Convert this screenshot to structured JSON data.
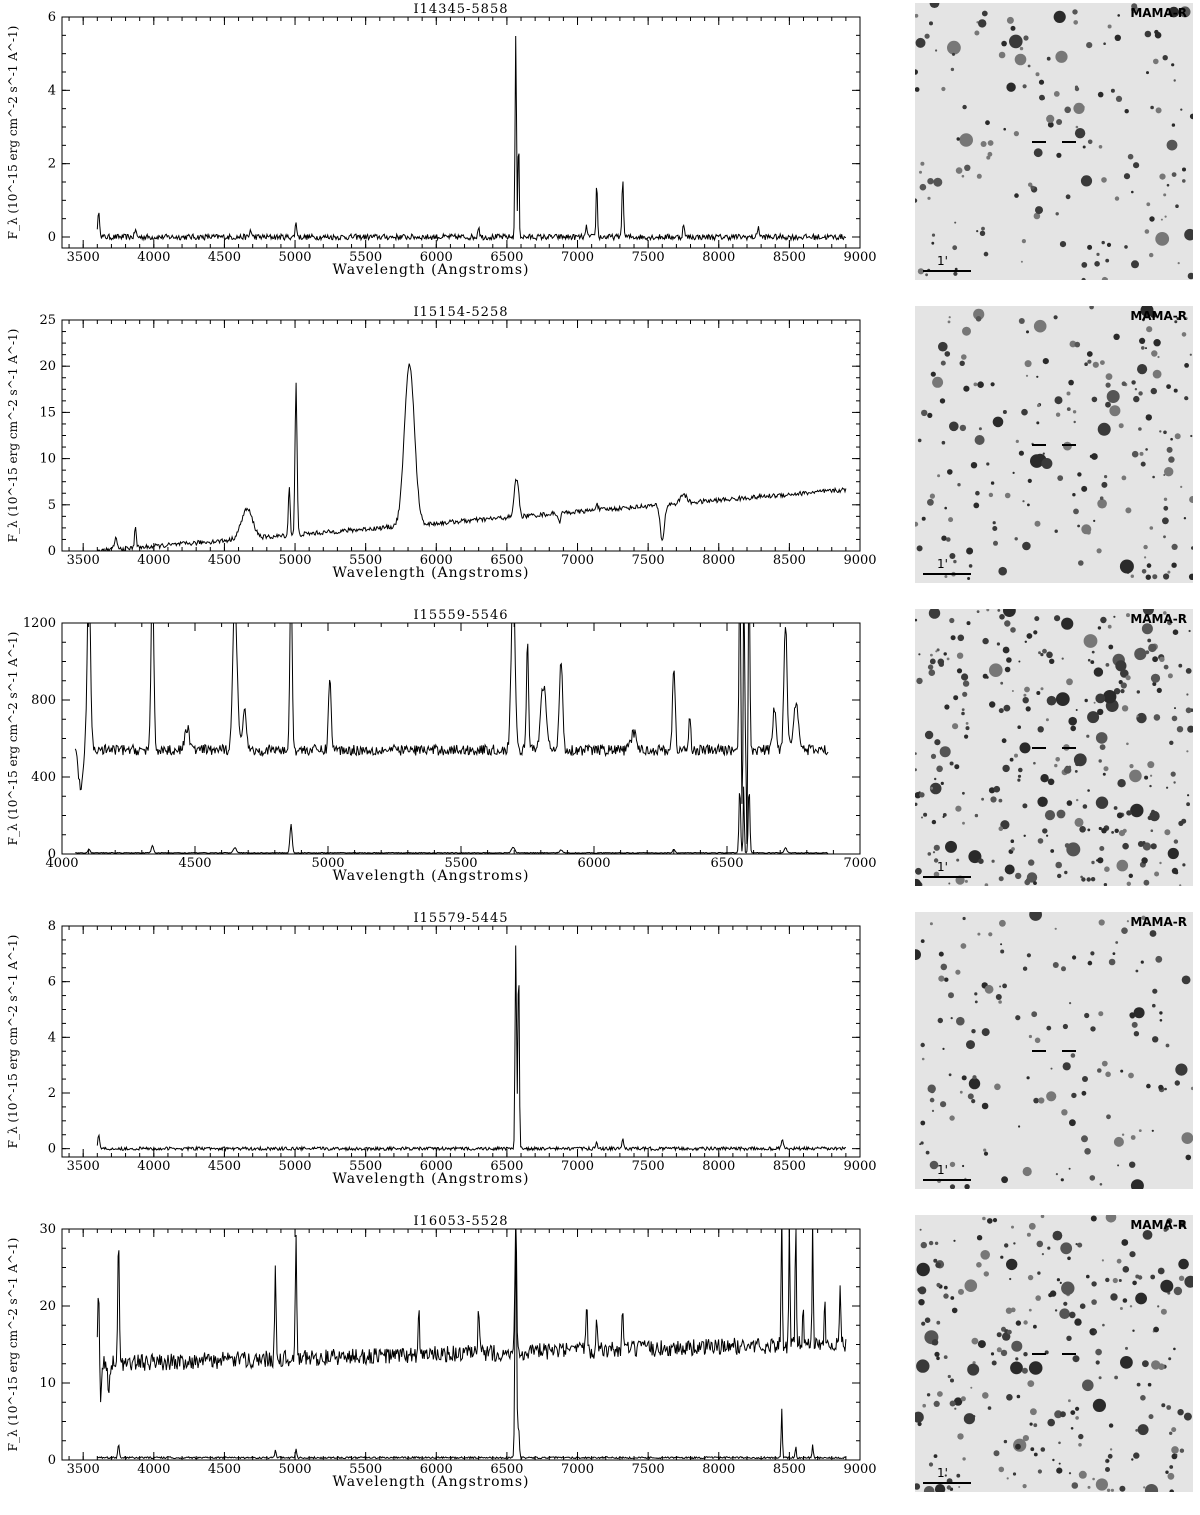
{
  "image_tag": "MAMA-R",
  "scale_label": "1'",
  "xlabel": "Wavelength (Angstroms)",
  "ylabel": "F_λ (10^-15 erg cm^-2 s^-1 A^-1)",
  "chart_data": [
    {
      "type": "line",
      "title": "I14345-5858",
      "xlabel": "Wavelength (Angstroms)",
      "ylabel": "F_λ (10^-15 erg cm^-2 s^-1 A^-1)",
      "xlim": [
        3350,
        9000
      ],
      "ylim": [
        -0.3,
        6
      ],
      "xticks": [
        3500,
        4000,
        4500,
        5000,
        5500,
        6000,
        6500,
        7000,
        7500,
        8000,
        8500,
        9000
      ],
      "yticks": [
        0,
        2,
        4,
        6
      ],
      "series": [
        {
          "range": [
            3600,
            8900
          ],
          "baseline": 0.0,
          "slope": 0,
          "noise": 0.08,
          "peaks": [
            [
              3610,
              0.6,
              8
            ],
            [
              3870,
              0.2,
              6
            ],
            [
              4686,
              0.2,
              6
            ],
            [
              5007,
              0.4,
              6
            ],
            [
              6300,
              0.3,
              6
            ],
            [
              6563,
              5.5,
              5
            ],
            [
              6583,
              2.9,
              4
            ],
            [
              7065,
              0.3,
              5
            ],
            [
              7136,
              1.5,
              5
            ],
            [
              7320,
              1.5,
              6
            ],
            [
              7751,
              0.4,
              5
            ],
            [
              8280,
              0.3,
              6
            ]
          ],
          "dips": []
        }
      ]
    },
    {
      "type": "line",
      "title": "I15154-5258",
      "xlabel": "Wavelength (Angstroms)",
      "ylabel": "F_λ (10^-15 erg cm^-2 s^-1 A^-1)",
      "xlim": [
        3350,
        9000
      ],
      "ylim": [
        0,
        25
      ],
      "xticks": [
        3500,
        4000,
        4500,
        5000,
        5500,
        6000,
        6500,
        7000,
        7500,
        8000,
        8500,
        9000
      ],
      "yticks": [
        0,
        5,
        10,
        15,
        20,
        25
      ],
      "series": [
        {
          "range": [
            3600,
            8900
          ],
          "baseline": 0.0,
          "slope": 0.00125,
          "noise": 0.25,
          "peaks": [
            [
              3730,
              1.2,
              10
            ],
            [
              3870,
              2.5,
              6
            ],
            [
              4660,
              3.2,
              40
            ],
            [
              4959,
              5.5,
              6
            ],
            [
              5007,
              16.5,
              7
            ],
            [
              5810,
              17.5,
              35
            ],
            [
              6563,
              4.0,
              12
            ],
            [
              6583,
              2.0,
              8
            ],
            [
              7136,
              0.8,
              8
            ],
            [
              7750,
              1.0,
              20
            ]
          ],
          "dips": [
            [
              7600,
              3.8,
              15
            ],
            [
              6870,
              1.0,
              8
            ]
          ]
        }
      ]
    },
    {
      "type": "line",
      "title": "I15559-5546",
      "xlabel": "Wavelength (Angstroms)",
      "ylabel": "F_λ (10^-15 erg cm^-2 s^-1 A^-1)",
      "xlim": [
        4000,
        7000
      ],
      "ylim": [
        0,
        1200
      ],
      "xticks": [
        4000,
        4500,
        5000,
        5500,
        6000,
        6500,
        7000
      ],
      "yticks": [
        0,
        400,
        800,
        1200
      ],
      "series": [
        {
          "range": [
            4050,
            6880
          ],
          "baseline": 540,
          "slope": 0,
          "noise": 28,
          "peaks": [
            [
              4101,
              900,
              6
            ],
            [
              4340,
              900,
              5
            ],
            [
              4471,
              120,
              8
            ],
            [
              4650,
              800,
              8
            ],
            [
              4686,
              200,
              8
            ],
            [
              4861,
              1000,
              4
            ],
            [
              5007,
              380,
              5
            ],
            [
              5696,
              900,
              7
            ],
            [
              5750,
              560,
              4
            ],
            [
              5810,
              340,
              10
            ],
            [
              5876,
              480,
              6
            ],
            [
              6150,
              90,
              10
            ],
            [
              6300,
              420,
              5
            ],
            [
              6360,
              160,
              4
            ],
            [
              6548,
              900,
              3
            ],
            [
              6563,
              900,
              3
            ],
            [
              6583,
              900,
              3
            ],
            [
              6678,
              220,
              6
            ],
            [
              6720,
              660,
              6
            ],
            [
              6760,
              240,
              10
            ]
          ],
          "dips": [
            [
              4070,
              200,
              8
            ],
            [
              6558,
              540,
              2
            ],
            [
              6575,
              540,
              2
            ]
          ]
        },
        {
          "range": [
            4050,
            6880
          ],
          "baseline": 6,
          "slope": 0,
          "noise": 2,
          "peaks": [
            [
              4101,
              20,
              4
            ],
            [
              4340,
              40,
              4
            ],
            [
              4650,
              25,
              6
            ],
            [
              4861,
              150,
              4
            ],
            [
              5696,
              30,
              6
            ],
            [
              5876,
              15,
              5
            ],
            [
              6300,
              20,
              4
            ],
            [
              6548,
              340,
              3
            ],
            [
              6563,
              360,
              2
            ],
            [
              6583,
              340,
              3
            ],
            [
              6720,
              25,
              5
            ]
          ],
          "dips": []
        }
      ]
    },
    {
      "type": "line",
      "title": "I15579-5445",
      "xlabel": "Wavelength (Angstroms)",
      "ylabel": "F_λ (10^-15 erg cm^-2 s^-1 A^-1)",
      "xlim": [
        3350,
        9000
      ],
      "ylim": [
        -0.3,
        8
      ],
      "xticks": [
        3500,
        4000,
        4500,
        5000,
        5500,
        6000,
        6500,
        7000,
        7500,
        8000,
        8500,
        9000
      ],
      "yticks": [
        0,
        2,
        4,
        6,
        8
      ],
      "series": [
        {
          "range": [
            3600,
            8900
          ],
          "baseline": 0.0,
          "slope": 0,
          "noise": 0.06,
          "peaks": [
            [
              3610,
              0.55,
              6
            ],
            [
              6563,
              7.4,
              5
            ],
            [
              6583,
              6.8,
              5
            ],
            [
              7136,
              0.25,
              5
            ],
            [
              7320,
              0.35,
              6
            ],
            [
              8450,
              0.3,
              8
            ]
          ],
          "dips": []
        }
      ]
    },
    {
      "type": "line",
      "title": "I16053-5528",
      "xlabel": "Wavelength (Angstroms)",
      "ylabel": "F_λ (10^-15 erg cm^-2 s^-1 A^-1)",
      "xlim": [
        3350,
        9000
      ],
      "ylim": [
        0,
        30
      ],
      "xticks": [
        3500,
        4000,
        4500,
        5000,
        5500,
        6000,
        6500,
        7000,
        7500,
        8000,
        8500,
        9000
      ],
      "yticks": [
        0,
        10,
        20,
        30
      ],
      "series": [
        {
          "range": [
            3600,
            8900
          ],
          "baseline": 12.5,
          "slope": 0.0005,
          "noise": 1.1,
          "peaks": [
            [
              3610,
              10,
              6
            ],
            [
              3750,
              17,
              5
            ],
            [
              4861,
              13,
              5
            ],
            [
              5007,
              15,
              5
            ],
            [
              5876,
              6,
              5
            ],
            [
              6300,
              6,
              5
            ],
            [
              6563,
              18,
              6
            ],
            [
              7065,
              7,
              5
            ],
            [
              7136,
              5,
              5
            ],
            [
              7320,
              5,
              5
            ],
            [
              8446,
              18,
              4
            ],
            [
              8500,
              16,
              4
            ],
            [
              8545,
              16,
              4
            ],
            [
              8598,
              6,
              4
            ],
            [
              8665,
              16,
              4
            ],
            [
              8750,
              7,
              4
            ],
            [
              8860,
              8,
              4
            ]
          ],
          "dips": [
            [
              3620,
              6,
              6
            ],
            [
              3680,
              5,
              6
            ]
          ]
        },
        {
          "range": [
            3600,
            8900
          ],
          "baseline": 0.3,
          "slope": 0,
          "noise": 0.12,
          "peaks": [
            [
              3750,
              1.8,
              5
            ],
            [
              4861,
              1.0,
              5
            ],
            [
              5007,
              1.2,
              5
            ],
            [
              6563,
              29,
              6
            ],
            [
              6583,
              4,
              5
            ],
            [
              8446,
              6.5,
              4
            ],
            [
              8545,
              1.5,
              4
            ],
            [
              8665,
              1.8,
              4
            ]
          ],
          "dips": []
        }
      ]
    }
  ]
}
